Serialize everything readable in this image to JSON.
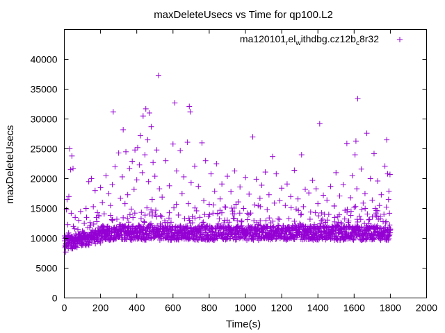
{
  "chart_data": {
    "type": "scatter",
    "title": "maxDeleteUsecs vs Time for qp100.L2",
    "xlabel": "Time(s)",
    "ylabel": "maxDeleteUsecs",
    "xlim": [
      0,
      2000
    ],
    "ylim": [
      0,
      45000
    ],
    "xticks": [
      "0",
      "200",
      "400",
      "600",
      "800",
      "1000",
      "1200",
      "1400",
      "1600",
      "1800",
      "2000"
    ],
    "yticks": [
      "0",
      "5000",
      "10000",
      "15000",
      "20000",
      "25000",
      "30000",
      "35000",
      "40000"
    ],
    "legend": {
      "label": "ma120101",
      "sub1": "r",
      "mid": "el",
      "sub2": "w",
      "rest": "ithdbg.cz12b",
      "sub3": "c",
      "tail": "8r32",
      "position": "top-right"
    },
    "marker": "+",
    "color": "#9400d3",
    "series": [
      {
        "name": "ma120101relwithdbg.cz12bc8r32",
        "points": [
          [
            5,
            8800
          ],
          [
            8,
            7700
          ],
          [
            10,
            9000
          ],
          [
            12,
            14800
          ],
          [
            15,
            16500
          ],
          [
            18,
            9200
          ],
          [
            20,
            10200
          ],
          [
            22,
            8300
          ],
          [
            25,
            17000
          ],
          [
            28,
            9800
          ],
          [
            30,
            25000
          ],
          [
            32,
            9500
          ],
          [
            35,
            21500
          ],
          [
            38,
            14200
          ],
          [
            40,
            10000
          ],
          [
            42,
            23800
          ],
          [
            45,
            9600
          ],
          [
            48,
            21700
          ],
          [
            50,
            12000
          ],
          [
            55,
            9400
          ],
          [
            60,
            13500
          ],
          [
            65,
            10500
          ],
          [
            70,
            9800
          ],
          [
            75,
            11500
          ],
          [
            80,
            13000
          ],
          [
            85,
            10200
          ],
          [
            90,
            14500
          ],
          [
            95,
            9900
          ],
          [
            100,
            11200
          ],
          [
            105,
            10800
          ],
          [
            110,
            12500
          ],
          [
            115,
            9700
          ],
          [
            120,
            15000
          ],
          [
            125,
            10300
          ],
          [
            130,
            11800
          ],
          [
            135,
            19500
          ],
          [
            140,
            10500
          ],
          [
            145,
            12200
          ],
          [
            150,
            20000
          ],
          [
            155,
            10000
          ],
          [
            160,
            15300
          ],
          [
            165,
            11000
          ],
          [
            170,
            18000
          ],
          [
            175,
            10600
          ],
          [
            180,
            12800
          ],
          [
            185,
            9800
          ],
          [
            190,
            13800
          ],
          [
            195,
            10900
          ],
          [
            200,
            18500
          ],
          [
            205,
            10400
          ],
          [
            210,
            16000
          ],
          [
            215,
            11400
          ],
          [
            220,
            14100
          ],
          [
            225,
            10700
          ],
          [
            230,
            20500
          ],
          [
            235,
            11200
          ],
          [
            240,
            12000
          ],
          [
            245,
            17500
          ],
          [
            250,
            10800
          ],
          [
            255,
            15500
          ],
          [
            260,
            11600
          ],
          [
            265,
            19000
          ],
          [
            270,
            31200
          ],
          [
            275,
            10900
          ],
          [
            280,
            22000
          ],
          [
            285,
            11500
          ],
          [
            290,
            13200
          ],
          [
            295,
            10600
          ],
          [
            300,
            24300
          ],
          [
            305,
            12300
          ],
          [
            310,
            16700
          ],
          [
            315,
            11200
          ],
          [
            320,
            20300
          ],
          [
            325,
            28200
          ],
          [
            330,
            11800
          ],
          [
            335,
            15800
          ],
          [
            340,
            24500
          ],
          [
            345,
            10900
          ],
          [
            350,
            17300
          ],
          [
            355,
            12700
          ],
          [
            360,
            21700
          ],
          [
            365,
            11300
          ],
          [
            370,
            14900
          ],
          [
            375,
            22900
          ],
          [
            380,
            10800
          ],
          [
            385,
            18200
          ],
          [
            390,
            24800
          ],
          [
            395,
            11600
          ],
          [
            400,
            19800
          ],
          [
            405,
            25200
          ],
          [
            410,
            12200
          ],
          [
            415,
            22300
          ],
          [
            420,
            27200
          ],
          [
            425,
            11400
          ],
          [
            430,
            21000
          ],
          [
            435,
            30500
          ],
          [
            440,
            12800
          ],
          [
            445,
            24000
          ],
          [
            450,
            31700
          ],
          [
            455,
            11700
          ],
          [
            460,
            26500
          ],
          [
            465,
            19500
          ],
          [
            470,
            31000
          ],
          [
            475,
            12100
          ],
          [
            480,
            28700
          ],
          [
            485,
            16500
          ],
          [
            490,
            22700
          ],
          [
            495,
            11500
          ],
          [
            500,
            20400
          ],
          [
            505,
            14700
          ],
          [
            510,
            24800
          ],
          [
            515,
            11000
          ],
          [
            520,
            37300
          ],
          [
            525,
            18300
          ],
          [
            530,
            12400
          ],
          [
            540,
            16900
          ],
          [
            550,
            11200
          ],
          [
            560,
            23000
          ],
          [
            570,
            12600
          ],
          [
            580,
            18800
          ],
          [
            590,
            11500
          ],
          [
            600,
            25800
          ],
          [
            605,
            15100
          ],
          [
            610,
            32700
          ],
          [
            615,
            11700
          ],
          [
            620,
            21300
          ],
          [
            630,
            13900
          ],
          [
            640,
            24700
          ],
          [
            645,
            11300
          ],
          [
            650,
            17500
          ],
          [
            660,
            20300
          ],
          [
            670,
            12000
          ],
          [
            680,
            26100
          ],
          [
            685,
            15800
          ],
          [
            690,
            32100
          ],
          [
            695,
            31200
          ],
          [
            700,
            19300
          ],
          [
            710,
            11200
          ],
          [
            720,
            22100
          ],
          [
            730,
            14600
          ],
          [
            740,
            18700
          ],
          [
            750,
            11700
          ],
          [
            760,
            26000
          ],
          [
            770,
            16300
          ],
          [
            780,
            23000
          ],
          [
            790,
            12100
          ],
          [
            800,
            15700
          ],
          [
            810,
            20800
          ],
          [
            820,
            11600
          ],
          [
            830,
            17900
          ],
          [
            840,
            22500
          ],
          [
            850,
            12400
          ],
          [
            860,
            16600
          ],
          [
            870,
            19100
          ],
          [
            880,
            11900
          ],
          [
            890,
            15200
          ],
          [
            900,
            20400
          ],
          [
            910,
            12700
          ],
          [
            920,
            17800
          ],
          [
            930,
            14100
          ],
          [
            940,
            21300
          ],
          [
            950,
            11800
          ],
          [
            960,
            16100
          ],
          [
            970,
            18600
          ],
          [
            980,
            12900
          ],
          [
            990,
            15000
          ],
          [
            1000,
            20200
          ],
          [
            1010,
            14200
          ],
          [
            1020,
            17400
          ],
          [
            1030,
            11900
          ],
          [
            1040,
            27000
          ],
          [
            1050,
            15600
          ],
          [
            1060,
            19900
          ],
          [
            1070,
            12300
          ],
          [
            1080,
            16700
          ],
          [
            1090,
            18900
          ],
          [
            1100,
            11800
          ],
          [
            1110,
            21100
          ],
          [
            1120,
            14800
          ],
          [
            1130,
            17300
          ],
          [
            1140,
            12600
          ],
          [
            1150,
            23700
          ],
          [
            1160,
            15900
          ],
          [
            1170,
            20800
          ],
          [
            1180,
            12200
          ],
          [
            1190,
            16300
          ],
          [
            1200,
            18400
          ],
          [
            1210,
            11700
          ],
          [
            1220,
            15500
          ],
          [
            1230,
            19100
          ],
          [
            1240,
            13300
          ],
          [
            1250,
            17000
          ],
          [
            1260,
            12100
          ],
          [
            1270,
            21400
          ],
          [
            1280,
            14900
          ],
          [
            1290,
            16600
          ],
          [
            1300,
            12500
          ],
          [
            1310,
            24000
          ],
          [
            1320,
            15300
          ],
          [
            1330,
            18200
          ],
          [
            1340,
            11900
          ],
          [
            1350,
            17600
          ],
          [
            1360,
            14400
          ],
          [
            1370,
            19700
          ],
          [
            1380,
            12300
          ],
          [
            1390,
            18300
          ],
          [
            1400,
            15800
          ],
          [
            1410,
            29200
          ],
          [
            1420,
            13000
          ],
          [
            1430,
            17200
          ],
          [
            1440,
            12700
          ],
          [
            1450,
            16400
          ],
          [
            1460,
            14000
          ],
          [
            1470,
            18700
          ],
          [
            1480,
            12000
          ],
          [
            1490,
            15400
          ],
          [
            1500,
            21000
          ],
          [
            1510,
            13600
          ],
          [
            1520,
            17100
          ],
          [
            1530,
            12400
          ],
          [
            1540,
            19000
          ],
          [
            1550,
            14700
          ],
          [
            1560,
            25900
          ],
          [
            1570,
            12900
          ],
          [
            1580,
            16800
          ],
          [
            1590,
            20500
          ],
          [
            1600,
            15200
          ],
          [
            1605,
            24000
          ],
          [
            1610,
            26300
          ],
          [
            1615,
            18300
          ],
          [
            1620,
            33400
          ],
          [
            1630,
            13700
          ],
          [
            1640,
            21600
          ],
          [
            1650,
            15900
          ],
          [
            1660,
            17500
          ],
          [
            1670,
            27600
          ],
          [
            1680,
            13100
          ],
          [
            1690,
            20000
          ],
          [
            1700,
            16400
          ],
          [
            1710,
            24200
          ],
          [
            1720,
            13900
          ],
          [
            1730,
            19600
          ],
          [
            1740,
            15500
          ],
          [
            1750,
            17300
          ],
          [
            1760,
            12800
          ],
          [
            1770,
            22100
          ],
          [
            1780,
            26500
          ],
          [
            1785,
            20800
          ],
          [
            1790,
            16500
          ],
          [
            1795,
            14200
          ],
          [
            1800,
            11500
          ],
          [
            1798,
            20700
          ],
          [
            1792,
            17900
          ]
        ]
      }
    ]
  }
}
